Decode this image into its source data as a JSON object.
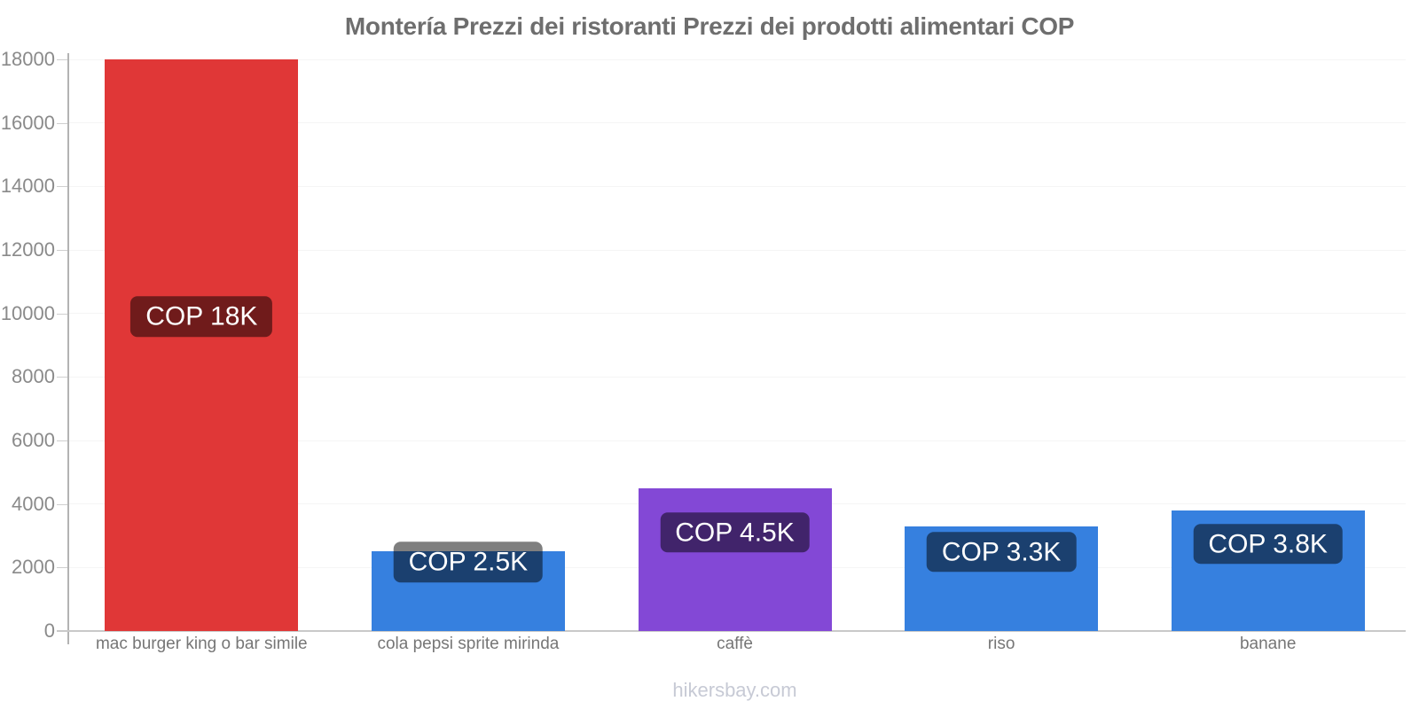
{
  "title": "Montería Prezzi dei ristoranti Prezzi dei prodotti alimentari COP",
  "footer": "hikersbay.com",
  "chart_data": {
    "type": "bar",
    "title": "Montería Prezzi dei ristoranti Prezzi dei prodotti alimentari COP",
    "currency": "COP",
    "categories": [
      "mac burger king o bar simile",
      "cola pepsi sprite mirinda",
      "caffè",
      "riso",
      "banane"
    ],
    "values": [
      18000,
      2500,
      4500,
      3300,
      3800
    ],
    "bar_labels": [
      "COP 18K",
      "COP 2.5K",
      "COP 4.5K",
      "COP 3.3K",
      "COP 3.8K"
    ],
    "bar_colors": [
      "#e03737",
      "#3680df",
      "#8348d6",
      "#3680df",
      "#3680df"
    ],
    "xlabel": "",
    "ylabel": "",
    "ylim": [
      0,
      18000
    ],
    "yticks": [
      0,
      2000,
      4000,
      6000,
      8000,
      10000,
      12000,
      14000,
      16000,
      18000
    ],
    "grid": true,
    "legend_position": "none"
  },
  "colors": {
    "red_bar": "#e03737",
    "blue_bar": "#3680df",
    "purple_bar": "#8348d6",
    "value_label_overlay": "rgba(0,0,0,0.5)",
    "value_label_text": "#ffffff",
    "title_text": "#6e6e6e",
    "ytick_text": "#8a8a8a",
    "xtick_text": "#767676",
    "footer_text": "#c7cad5",
    "gridline": "#f5f5f5",
    "axis_line": "#b3b3b3"
  }
}
